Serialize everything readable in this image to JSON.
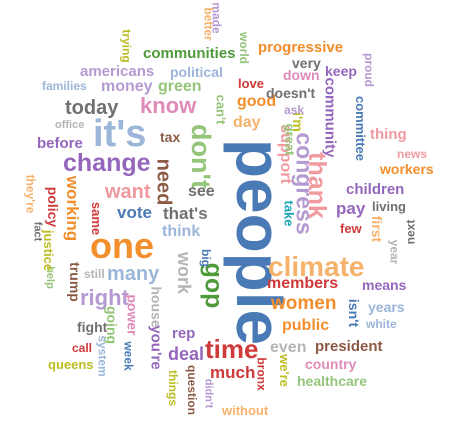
{
  "colors": {
    "blue": "#4a7ab5",
    "light_blue": "#9bb6d8",
    "orange": "#f28e2b",
    "peach": "#f6b26b",
    "green": "#4f9a3a",
    "light_green": "#94c57a",
    "red": "#cf3a3a",
    "pink": "#f09aa0",
    "purple": "#9467bd",
    "lavender": "#b59ad1",
    "brown": "#8c5a44",
    "rose": "#df8bb8",
    "gray": "#707070",
    "light_gray": "#b5b5b5",
    "olive": "#bcbd22",
    "teal": "#1ba3b8"
  },
  "words": [
    {
      "text": "people",
      "color": "blue"
    },
    {
      "text": "it's",
      "color": "light_blue"
    },
    {
      "text": "one",
      "color": "orange"
    },
    {
      "text": "time",
      "color": "red"
    },
    {
      "text": "climate",
      "color": "peach"
    },
    {
      "text": "change",
      "color": "purple"
    },
    {
      "text": "don't",
      "color": "light_green"
    },
    {
      "text": "thank",
      "color": "pink"
    },
    {
      "text": "congress",
      "color": "lavender"
    },
    {
      "text": "gop",
      "color": "green"
    },
    {
      "text": "know",
      "color": "rose"
    },
    {
      "text": "today",
      "color": "gray"
    },
    {
      "text": "right",
      "color": "lavender"
    },
    {
      "text": "many",
      "color": "light_blue"
    },
    {
      "text": "women",
      "color": "orange"
    },
    {
      "text": "members",
      "color": "red"
    },
    {
      "text": "public",
      "color": "orange"
    },
    {
      "text": "need",
      "color": "brown"
    },
    {
      "text": "want",
      "color": "pink"
    },
    {
      "text": "vote",
      "color": "blue"
    },
    {
      "text": "that's",
      "color": "gray"
    },
    {
      "text": "think",
      "color": "light_blue"
    },
    {
      "text": "see",
      "color": "gray"
    },
    {
      "text": "work",
      "color": "light_gray"
    },
    {
      "text": "big",
      "color": "blue"
    },
    {
      "text": "deal",
      "color": "purple"
    },
    {
      "text": "much",
      "color": "red"
    },
    {
      "text": "even",
      "color": "light_gray"
    },
    {
      "text": "president",
      "color": "brown"
    },
    {
      "text": "country",
      "color": "rose"
    },
    {
      "text": "healthcare",
      "color": "light_green"
    },
    {
      "text": "we're",
      "color": "olive"
    },
    {
      "text": "bronx",
      "color": "red"
    },
    {
      "text": "without",
      "color": "peach"
    },
    {
      "text": "didn't",
      "color": "lavender"
    },
    {
      "text": "question",
      "color": "brown"
    },
    {
      "text": "things",
      "color": "olive"
    },
    {
      "text": "rep",
      "color": "purple"
    },
    {
      "text": "you're",
      "color": "purple"
    },
    {
      "text": "house",
      "color": "light_gray"
    },
    {
      "text": "week",
      "color": "blue"
    },
    {
      "text": "power",
      "color": "rose"
    },
    {
      "text": "going",
      "color": "light_green"
    },
    {
      "text": "system",
      "color": "light_blue"
    },
    {
      "text": "call",
      "color": "red"
    },
    {
      "text": "fight",
      "color": "gray"
    },
    {
      "text": "queens",
      "color": "olive"
    },
    {
      "text": "still",
      "color": "light_gray"
    },
    {
      "text": "trump",
      "color": "brown"
    },
    {
      "text": "help",
      "color": "light_green"
    },
    {
      "text": "justice",
      "color": "olive"
    },
    {
      "text": "fact",
      "color": "gray"
    },
    {
      "text": "policy",
      "color": "red"
    },
    {
      "text": "working",
      "color": "orange"
    },
    {
      "text": "same",
      "color": "red"
    },
    {
      "text": "they're",
      "color": "peach"
    },
    {
      "text": "before",
      "color": "purple"
    },
    {
      "text": "office",
      "color": "light_gray"
    },
    {
      "text": "tax",
      "color": "brown"
    },
    {
      "text": "can't",
      "color": "light_green"
    },
    {
      "text": "day",
      "color": "peach"
    },
    {
      "text": "good",
      "color": "orange"
    },
    {
      "text": "love",
      "color": "red"
    },
    {
      "text": "support",
      "color": "pink"
    },
    {
      "text": "take",
      "color": "teal"
    },
    {
      "text": "great",
      "color": "light_green"
    },
    {
      "text": "i'm",
      "color": "olive"
    },
    {
      "text": "community",
      "color": "purple"
    },
    {
      "text": "doesn't",
      "color": "gray"
    },
    {
      "text": "ask",
      "color": "lavender"
    },
    {
      "text": "down",
      "color": "rose"
    },
    {
      "text": "very",
      "color": "gray"
    },
    {
      "text": "keep",
      "color": "purple"
    },
    {
      "text": "proud",
      "color": "lavender"
    },
    {
      "text": "committee",
      "color": "blue"
    },
    {
      "text": "thing",
      "color": "pink"
    },
    {
      "text": "news",
      "color": "pink"
    },
    {
      "text": "workers",
      "color": "orange"
    },
    {
      "text": "children",
      "color": "purple"
    },
    {
      "text": "living",
      "color": "gray"
    },
    {
      "text": "pay",
      "color": "purple"
    },
    {
      "text": "few",
      "color": "red"
    },
    {
      "text": "first",
      "color": "peach"
    },
    {
      "text": "next",
      "color": "gray"
    },
    {
      "text": "year",
      "color": "light_gray"
    },
    {
      "text": "means",
      "color": "purple"
    },
    {
      "text": "years",
      "color": "light_blue"
    },
    {
      "text": "isn't",
      "color": "blue"
    },
    {
      "text": "white",
      "color": "light_blue"
    },
    {
      "text": "money",
      "color": "lavender"
    },
    {
      "text": "green",
      "color": "light_green"
    },
    {
      "text": "americans",
      "color": "lavender"
    },
    {
      "text": "political",
      "color": "light_blue"
    },
    {
      "text": "families",
      "color": "light_blue"
    },
    {
      "text": "communities",
      "color": "green"
    },
    {
      "text": "trying",
      "color": "olive"
    },
    {
      "text": "better",
      "color": "peach"
    },
    {
      "text": "made",
      "color": "lavender"
    },
    {
      "text": "world",
      "color": "light_green"
    },
    {
      "text": "progressive",
      "color": "orange"
    }
  ]
}
